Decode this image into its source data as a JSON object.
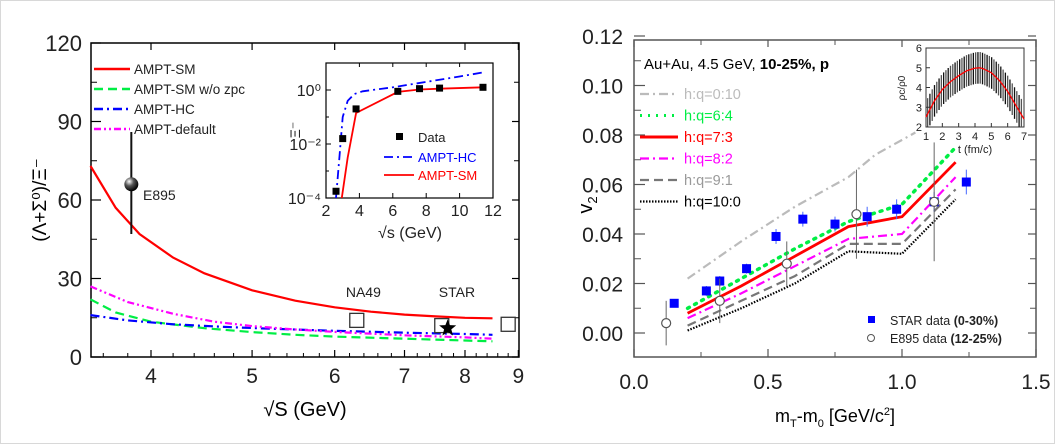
{
  "chart_data": [
    {
      "id": "left",
      "type": "line",
      "title": "",
      "xlabel": "√S (GeV)",
      "ylabel": "(Λ+Σ⁰)/Ξ⁻",
      "xscale": "log",
      "xlim": [
        3.5,
        9
      ],
      "ylim": [
        0,
        120
      ],
      "xticks": [
        4,
        5,
        6,
        7,
        8,
        9
      ],
      "yticks": [
        0,
        30,
        60,
        90,
        120
      ],
      "legend_position": "top-left",
      "series": [
        {
          "name": "AMPT-SM",
          "color": "#ff0000",
          "style": "solid",
          "x": [
            3.5,
            3.7,
            3.9,
            4.2,
            4.5,
            5.0,
            5.5,
            6.0,
            6.5,
            7.0,
            7.5,
            8.0,
            8.5
          ],
          "y": [
            73,
            57,
            47,
            38,
            32,
            25.5,
            21.5,
            19,
            17.3,
            16.2,
            15.5,
            15,
            14.8
          ]
        },
        {
          "name": "AMPT-SM w/o zpc",
          "color": "#00ee44",
          "style": "dash",
          "x": [
            3.5,
            3.7,
            4.0,
            4.5,
            5.0,
            5.5,
            6.0,
            7.0,
            8.0,
            8.5
          ],
          "y": [
            22,
            17,
            13.5,
            11,
            9.5,
            8.5,
            7.8,
            7,
            6.3,
            6
          ]
        },
        {
          "name": "AMPT-HC",
          "color": "#0000ff",
          "style": "dashdot",
          "x": [
            3.5,
            3.8,
            4.2,
            4.7,
            5.2,
            6.0,
            7.0,
            8.0,
            8.5
          ],
          "y": [
            16,
            14,
            12.5,
            11.5,
            10.8,
            10,
            9.3,
            8.8,
            8.5
          ]
        },
        {
          "name": "AMPT-default",
          "color": "#ff00ff",
          "style": "dashdotdot",
          "x": [
            3.5,
            3.8,
            4.2,
            4.6,
            5.0,
            5.5,
            6.0,
            7.0,
            8.0,
            8.5
          ],
          "y": [
            27,
            21,
            16.5,
            13.5,
            11.8,
            10.5,
            9.6,
            8.3,
            7.5,
            7
          ]
        }
      ],
      "points": [
        {
          "name": "E895",
          "x": 3.83,
          "y": 66,
          "yerr_low": 19,
          "yerr_high": 20,
          "marker": "sphere"
        },
        {
          "name": "NA49",
          "x": 6.3,
          "y": 14,
          "marker": "open-square"
        },
        {
          "name": "STAR",
          "x": 7.6,
          "y": 12,
          "marker": "open-square"
        },
        {
          "name": "STAR-star",
          "x": 7.7,
          "y": 11,
          "marker": "star"
        },
        {
          "name": "",
          "x": 8.8,
          "y": 12.5,
          "marker": "open-square"
        }
      ],
      "point_labels": [
        {
          "text": "E895",
          "x": 3.93,
          "y": 60
        },
        {
          "text": "NA49",
          "x": 6.15,
          "y": 23
        },
        {
          "text": "STAR",
          "x": 7.55,
          "y": 23
        }
      ],
      "inset": {
        "type": "line",
        "xlabel": "√s (GeV)",
        "ylabel": "Ξ⁻",
        "xlim": [
          2,
          12
        ],
        "ylim_log10": [
          -4,
          1
        ],
        "xticks": [
          2,
          4,
          6,
          8,
          10,
          12
        ],
        "ytick_labels": [
          "10⁻⁴",
          "10⁻²",
          "10⁰"
        ],
        "ytick_values_log10": [
          -4,
          -2,
          0
        ],
        "legend": [
          "Data",
          "AMPT-HC",
          "AMPT-SM"
        ],
        "data": {
          "x": [
            2.6,
            3.0,
            3.8,
            6.3,
            7.6,
            8.8,
            11.4
          ],
          "y_log10": [
            -3.75,
            -1.8,
            -0.7,
            -0.05,
            0.05,
            0.07,
            0.1
          ]
        },
        "series": [
          {
            "name": "AMPT-HC",
            "color": "#0000ff",
            "style": "dashdot",
            "x": [
              2.6,
              2.8,
              3.0,
              3.3,
              3.7,
              4.2,
              6.0,
              8.0,
              10.0,
              11.4
            ],
            "y_log10": [
              -4,
              -2.5,
              -1.0,
              -0.4,
              -0.15,
              -0.05,
              0.1,
              0.3,
              0.5,
              0.65
            ]
          },
          {
            "name": "AMPT-SM",
            "color": "#ff0000",
            "style": "solid",
            "x": [
              2.9,
              3.3,
              3.8,
              6.3,
              7.6,
              8.8,
              11.4
            ],
            "y_log10": [
              -4.2,
              -2.5,
              -0.85,
              -0.07,
              0.02,
              0.05,
              0.1
            ]
          }
        ]
      }
    },
    {
      "id": "right",
      "type": "line",
      "title": "",
      "annotation": {
        "plain": "Au+Au, 4.5 GeV, ",
        "bold": "10-25%, p"
      },
      "xlabel": "mT-m0 [GeV/c2]",
      "ylabel": "v2",
      "xlim": [
        0,
        1.5
      ],
      "ylim": [
        -0.015,
        0.12
      ],
      "xticks": [
        0.0,
        0.5,
        1.0,
        1.5
      ],
      "xtick_labels": [
        "0.0",
        "0.5",
        "1.0",
        "1.5"
      ],
      "yticks": [
        0.0,
        0.02,
        0.04,
        0.06,
        0.08,
        0.1,
        0.12
      ],
      "ytick_labels": [
        "0.00",
        "0.02",
        "0.04",
        "0.06",
        "0.08",
        "0.10",
        "0.12"
      ],
      "legend_position": "top-left",
      "series": [
        {
          "name": "h:q=0:10",
          "color": "#bbbbbb",
          "style": "dashdot",
          "x": [
            0.2,
            0.4,
            0.6,
            0.8,
            0.9,
            1.05
          ],
          "y": [
            0.022,
            0.037,
            0.051,
            0.063,
            0.072,
            0.081
          ]
        },
        {
          "name": "h:q=6:4",
          "color": "#00ee44",
          "style": "dot",
          "x": [
            0.2,
            0.4,
            0.6,
            0.8,
            1.0,
            1.2
          ],
          "y": [
            0.01,
            0.022,
            0.034,
            0.045,
            0.052,
            0.075
          ]
        },
        {
          "name": "h:q=7:3",
          "color": "#ff0000",
          "style": "solid",
          "x": [
            0.2,
            0.4,
            0.6,
            0.8,
            1.0,
            1.2
          ],
          "y": [
            0.008,
            0.019,
            0.031,
            0.043,
            0.047,
            0.069
          ]
        },
        {
          "name": "h:q=8:2",
          "color": "#ff00ff",
          "style": "dashdot",
          "x": [
            0.2,
            0.4,
            0.6,
            0.8,
            1.0,
            1.2
          ],
          "y": [
            0.006,
            0.016,
            0.027,
            0.038,
            0.04,
            0.063
          ]
        },
        {
          "name": "h:q=9:1",
          "color": "#777777",
          "style": "dash",
          "x": [
            0.2,
            0.4,
            0.6,
            0.8,
            1.0,
            1.2
          ],
          "y": [
            0.003,
            0.013,
            0.023,
            0.036,
            0.036,
            0.058
          ]
        },
        {
          "name": "h:q=10:0",
          "color": "#000000",
          "style": "dotted",
          "x": [
            0.2,
            0.4,
            0.6,
            0.8,
            1.0,
            1.2
          ],
          "y": [
            0.001,
            0.01,
            0.02,
            0.033,
            0.032,
            0.054
          ]
        }
      ],
      "scatter": [
        {
          "name": "STAR data",
          "bold": "(0-30%)",
          "color": "#0000ff",
          "marker": "filled-square",
          "x": [
            0.15,
            0.27,
            0.32,
            0.42,
            0.53,
            0.63,
            0.75,
            0.87,
            0.98,
            1.12,
            1.24
          ],
          "y": [
            0.012,
            0.017,
            0.021,
            0.026,
            0.039,
            0.046,
            0.044,
            0.047,
            0.05,
            0.053,
            0.061
          ],
          "yerr": [
            0.001,
            0.002,
            0.002,
            0.002,
            0.003,
            0.003,
            0.003,
            0.004,
            0.004,
            0.004,
            0.005
          ]
        },
        {
          "name": "E895 data",
          "bold": "(12-25%)",
          "color": "#555555",
          "marker": "open-circle",
          "x": [
            0.12,
            0.32,
            0.57,
            0.83,
            1.12
          ],
          "y": [
            0.004,
            0.013,
            0.028,
            0.048,
            0.053
          ],
          "yerr": [
            0.009,
            0.009,
            0.009,
            0.018,
            0.024
          ]
        }
      ],
      "inset": {
        "type": "line",
        "xlabel": "t (fm/c)",
        "ylabel": "ρc/ρ0",
        "xlim": [
          1,
          7
        ],
        "ylim": [
          2,
          6
        ],
        "xticks": [
          1,
          2,
          3,
          4,
          5,
          6,
          7
        ],
        "yticks": [
          2,
          3,
          4,
          5,
          6
        ],
        "curve": {
          "color": "#ff0000",
          "x": [
            1.0,
            1.5,
            2.0,
            2.5,
            3.0,
            3.5,
            4.0,
            4.3,
            4.5,
            5.0,
            5.5,
            6.0,
            6.5,
            7.0
          ],
          "y": [
            2.5,
            3.3,
            3.9,
            4.3,
            4.6,
            4.85,
            4.98,
            5.0,
            4.95,
            4.75,
            4.35,
            3.8,
            3.1,
            2.4
          ]
        },
        "error_band_halfwidth": 0.8
      }
    }
  ]
}
